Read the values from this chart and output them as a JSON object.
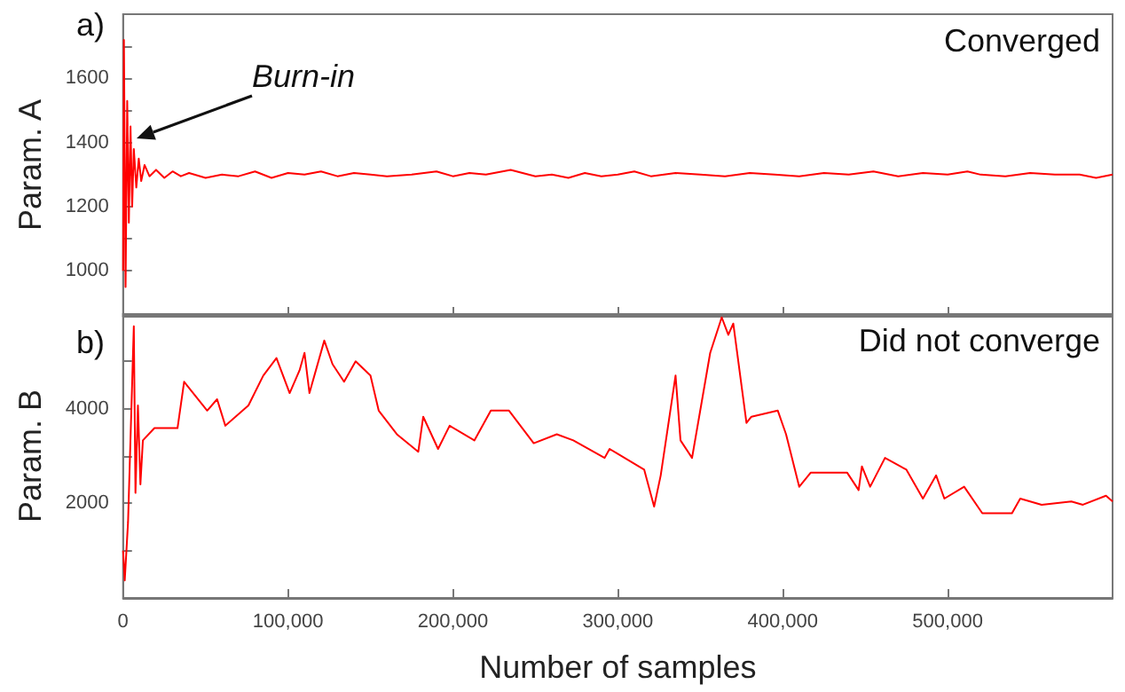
{
  "chart_data": [
    {
      "type": "line",
      "title": "a)",
      "ylabel": "Param. A",
      "annotations": [
        "Converged",
        "Burn-in"
      ],
      "xlim": [
        0,
        600000
      ],
      "xticks": [
        0,
        100000,
        200000,
        300000,
        400000,
        500000
      ],
      "ylim": [
        860,
        1800
      ],
      "yticks": [
        1000,
        {
          "value": 1100,
          "label": null
        },
        1200,
        {
          "value": 1300,
          "label": null
        },
        1400,
        {
          "value": 1500,
          "label": null
        },
        1600,
        {
          "value": 1700,
          "label": null
        }
      ],
      "tick_labels": "y",
      "grid": false,
      "marker": "none",
      "line_style": "solid",
      "series": [
        {
          "color": "#ff0000",
          "x": [
            0,
            500,
            1500,
            2500,
            3500,
            4500,
            5500,
            6500,
            8000,
            9500,
            11000,
            13000,
            16000,
            20000,
            25000,
            30000,
            35000,
            40000,
            50000,
            60000,
            70000,
            80000,
            90000,
            100000,
            110000,
            120000,
            130000,
            140000,
            150000,
            160000,
            175000,
            190000,
            200000,
            210000,
            220000,
            235000,
            250000,
            260000,
            270000,
            280000,
            290000,
            300000,
            310000,
            320000,
            335000,
            350000,
            365000,
            380000,
            395000,
            410000,
            425000,
            440000,
            455000,
            470000,
            485000,
            500000,
            512000,
            520000,
            535000,
            550000,
            565000,
            580000,
            590000,
            600000
          ],
          "values": [
            1000,
            1720,
            950,
            1530,
            1150,
            1450,
            1200,
            1380,
            1260,
            1350,
            1280,
            1330,
            1295,
            1315,
            1290,
            1310,
            1295,
            1305,
            1290,
            1300,
            1295,
            1310,
            1290,
            1305,
            1300,
            1310,
            1295,
            1305,
            1300,
            1295,
            1300,
            1310,
            1295,
            1305,
            1300,
            1315,
            1295,
            1300,
            1290,
            1305,
            1295,
            1300,
            1310,
            1295,
            1305,
            1300,
            1295,
            1305,
            1300,
            1295,
            1305,
            1300,
            1310,
            1295,
            1305,
            1300,
            1310,
            1300,
            1295,
            1305,
            1300,
            1300,
            1290,
            1300
          ]
        }
      ]
    },
    {
      "type": "line",
      "title": "b)",
      "xlabel": "Number of samples",
      "ylabel": "Param. B",
      "annotations": [
        "Did not converge"
      ],
      "xlim": [
        0,
        600000
      ],
      "xticks": [
        0,
        {
          "value": 100000,
          "label": "100,000"
        },
        {
          "value": 200000,
          "label": "200,000"
        },
        {
          "value": 300000,
          "label": "300,000"
        },
        {
          "value": 400000,
          "label": "400,000"
        },
        {
          "value": 500000,
          "label": "500,000"
        }
      ],
      "ylim": [
        0,
        6000
      ],
      "yticks": [
        {
          "value": 1000,
          "label": null
        },
        2000,
        {
          "value": 3000,
          "label": null
        },
        4000,
        {
          "value": 5000,
          "label": null
        }
      ],
      "grid": false,
      "marker": "none",
      "line_style": "solid",
      "series": [
        {
          "color": "#ff0000",
          "x": [
            0,
            1000,
            3000,
            6500,
            7500,
            9000,
            10500,
            12000,
            19000,
            33000,
            37000,
            51000,
            57000,
            62000,
            76000,
            85000,
            93000,
            101000,
            107000,
            110000,
            113000,
            122000,
            127000,
            134000,
            141000,
            150000,
            155000,
            166000,
            179000,
            182000,
            191000,
            198000,
            213000,
            223000,
            234000,
            249000,
            263000,
            273000,
            292000,
            295000,
            316000,
            322000,
            326000,
            335000,
            338000,
            345000,
            356000,
            363000,
            367000,
            370000,
            378000,
            381000,
            397000,
            402000,
            410000,
            417000,
            439000,
            446000,
            448000,
            453000,
            462000,
            475000,
            485000,
            493000,
            498000,
            510000,
            521000,
            539000,
            544000,
            557000,
            575000,
            582000,
            596000,
            600000
          ],
          "values": [
            1000,
            370,
            1600,
            5740,
            2220,
            4070,
            2400,
            3330,
            3590,
            3590,
            4570,
            3960,
            4200,
            3640,
            4070,
            4700,
            5070,
            4330,
            4810,
            5180,
            4330,
            5440,
            4940,
            4570,
            5000,
            4700,
            3960,
            3460,
            3090,
            3830,
            3150,
            3640,
            3330,
            3960,
            3960,
            3270,
            3460,
            3330,
            2960,
            3150,
            2710,
            1930,
            2590,
            4700,
            3330,
            2960,
            5180,
            5930,
            5560,
            5800,
            3700,
            3830,
            3960,
            3460,
            2350,
            2650,
            2650,
            2280,
            2780,
            2350,
            2960,
            2710,
            2100,
            2590,
            2100,
            2350,
            1790,
            1790,
            2100,
            1970,
            2040,
            1970,
            2160,
            2040
          ]
        }
      ]
    }
  ]
}
